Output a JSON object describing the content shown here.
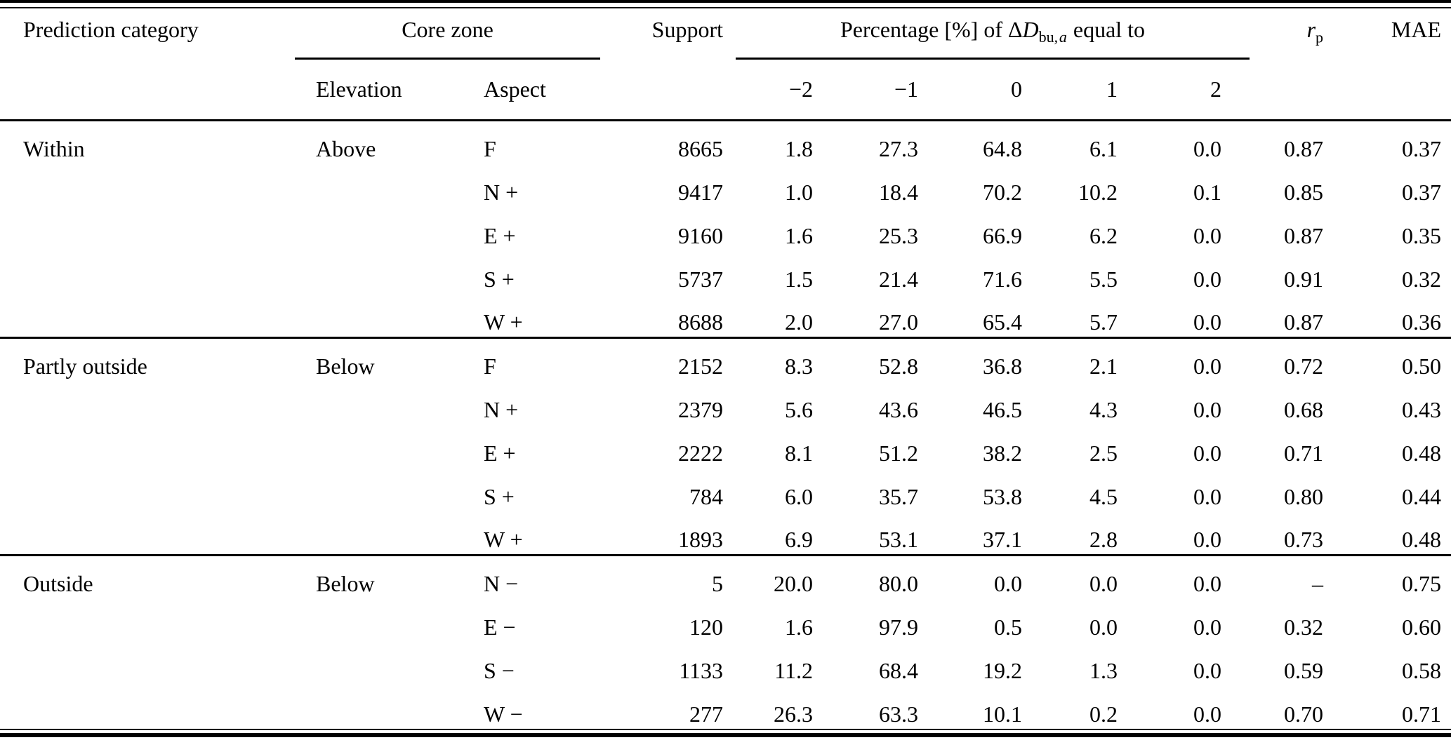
{
  "table": {
    "headers": {
      "prediction_category": "Prediction category",
      "core_zone": "Core zone",
      "elevation": "Elevation",
      "aspect": "Aspect",
      "support": "Support",
      "percentage": {
        "prefix": "Percentage [%] of Δ",
        "variable": "D",
        "subscript_roman": "bu,",
        "subscript_italic": "a",
        "suffix": "equal to"
      },
      "delta_values": [
        "−2",
        "−1",
        "0",
        "1",
        "2"
      ],
      "rp": {
        "variable": "r",
        "subscript": "p"
      },
      "mae": "MAE"
    },
    "groups": [
      {
        "category": "Within",
        "elevation": "Above",
        "rows": [
          {
            "aspect": "F",
            "support": "8665",
            "percentages": [
              "1.8",
              "27.3",
              "64.8",
              "6.1",
              "0.0"
            ],
            "rp": "0.87",
            "mae": "0.37"
          },
          {
            "aspect": "N +",
            "support": "9417",
            "percentages": [
              "1.0",
              "18.4",
              "70.2",
              "10.2",
              "0.1"
            ],
            "rp": "0.85",
            "mae": "0.37"
          },
          {
            "aspect": "E +",
            "support": "9160",
            "percentages": [
              "1.6",
              "25.3",
              "66.9",
              "6.2",
              "0.0"
            ],
            "rp": "0.87",
            "mae": "0.35"
          },
          {
            "aspect": "S +",
            "support": "5737",
            "percentages": [
              "1.5",
              "21.4",
              "71.6",
              "5.5",
              "0.0"
            ],
            "rp": "0.91",
            "mae": "0.32"
          },
          {
            "aspect": "W +",
            "support": "8688",
            "percentages": [
              "2.0",
              "27.0",
              "65.4",
              "5.7",
              "0.0"
            ],
            "rp": "0.87",
            "mae": "0.36"
          }
        ]
      },
      {
        "category": "Partly outside",
        "elevation": "Below",
        "rows": [
          {
            "aspect": "F",
            "support": "2152",
            "percentages": [
              "8.3",
              "52.8",
              "36.8",
              "2.1",
              "0.0"
            ],
            "rp": "0.72",
            "mae": "0.50"
          },
          {
            "aspect": "N +",
            "support": "2379",
            "percentages": [
              "5.6",
              "43.6",
              "46.5",
              "4.3",
              "0.0"
            ],
            "rp": "0.68",
            "mae": "0.43"
          },
          {
            "aspect": "E +",
            "support": "2222",
            "percentages": [
              "8.1",
              "51.2",
              "38.2",
              "2.5",
              "0.0"
            ],
            "rp": "0.71",
            "mae": "0.48"
          },
          {
            "aspect": "S +",
            "support": "784",
            "percentages": [
              "6.0",
              "35.7",
              "53.8",
              "4.5",
              "0.0"
            ],
            "rp": "0.80",
            "mae": "0.44"
          },
          {
            "aspect": "W +",
            "support": "1893",
            "percentages": [
              "6.9",
              "53.1",
              "37.1",
              "2.8",
              "0.0"
            ],
            "rp": "0.73",
            "mae": "0.48"
          }
        ]
      },
      {
        "category": "Outside",
        "elevation": "Below",
        "rows": [
          {
            "aspect": "N −",
            "support": "5",
            "percentages": [
              "20.0",
              "80.0",
              "0.0",
              "0.0",
              "0.0"
            ],
            "rp": "–",
            "mae": "0.75"
          },
          {
            "aspect": "E −",
            "support": "120",
            "percentages": [
              "1.6",
              "97.9",
              "0.5",
              "0.0",
              "0.0"
            ],
            "rp": "0.32",
            "mae": "0.60"
          },
          {
            "aspect": "S −",
            "support": "1133",
            "percentages": [
              "11.2",
              "68.4",
              "19.2",
              "1.3",
              "0.0"
            ],
            "rp": "0.59",
            "mae": "0.58"
          },
          {
            "aspect": "W −",
            "support": "277",
            "percentages": [
              "26.3",
              "63.3",
              "10.1",
              "0.2",
              "0.0"
            ],
            "rp": "0.70",
            "mae": "0.71"
          }
        ]
      }
    ]
  }
}
